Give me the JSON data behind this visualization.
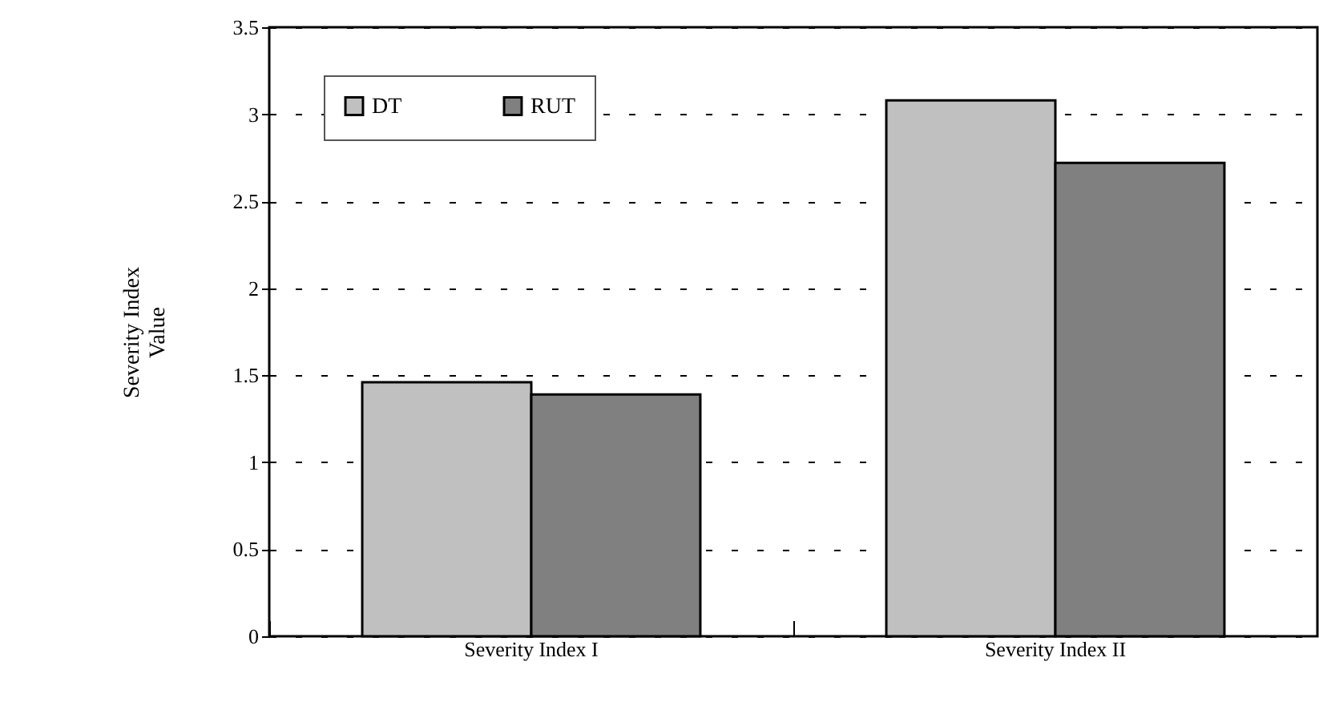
{
  "chart_data": {
    "type": "bar",
    "ylabel": "Severity Index Value",
    "categories": [
      "Severity Index I",
      "Severity Index II"
    ],
    "series": [
      {
        "name": "DT",
        "color": "#c0c0c0",
        "values": [
          1.46,
          3.08
        ]
      },
      {
        "name": "RUT",
        "color": "#808080",
        "values": [
          1.39,
          2.72
        ]
      }
    ],
    "ylim": [
      0,
      3.5
    ],
    "yticks": [
      0,
      0.5,
      1,
      1.5,
      2,
      2.5,
      3,
      3.5
    ],
    "grid": "y",
    "legend": "top left"
  }
}
